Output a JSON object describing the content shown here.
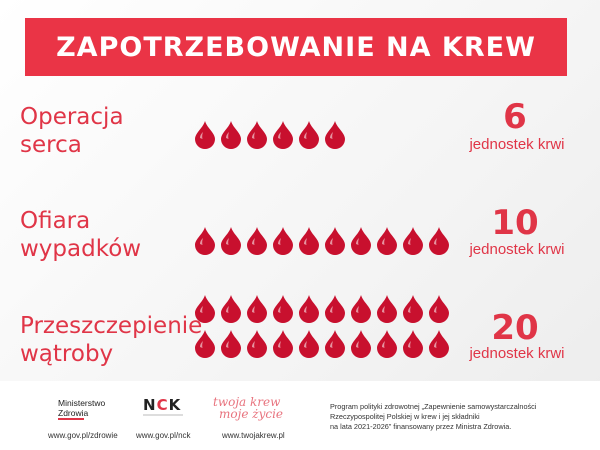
{
  "title": "ZAPOTRZEBOWANIE NA KREW",
  "rows": [
    {
      "label_lines": [
        "Operacja",
        "serca"
      ],
      "count": "6",
      "unit": "jednostek krwi",
      "drops": 6
    },
    {
      "label_lines": [
        "Ofiara",
        "wypadków"
      ],
      "count": "10",
      "unit": "jednostek krwi",
      "drops": 10
    },
    {
      "label_lines": [
        "Przeszczepienie",
        "wątroby"
      ],
      "count": "20",
      "unit": "jednostek krwi",
      "drops": 20
    }
  ],
  "footer": {
    "mz_logo_lines": [
      "Ministerstwo",
      "Zdrowia"
    ],
    "mz_url": "www.gov.pl/zdrowie",
    "nck_logo": "NCK",
    "nck_url": "www.gov.pl/nck",
    "tk_logo_lines": [
      "twoja krew",
      "moje życie"
    ],
    "tk_url": "www.twojakrew.pl",
    "program_lines": [
      "Program polityki zdrowotnej „Zapewnienie samowystarczalności",
      "Rzeczypospolitej Polskiej w krew i jej składniki",
      "na lata 2021-2026” finansowany przez Ministra Zdrowia."
    ]
  },
  "colors": {
    "accent": "#e03547",
    "title_bar": "#ea3446",
    "drop": "#c8102e"
  },
  "icon": "blood-drop-icon"
}
